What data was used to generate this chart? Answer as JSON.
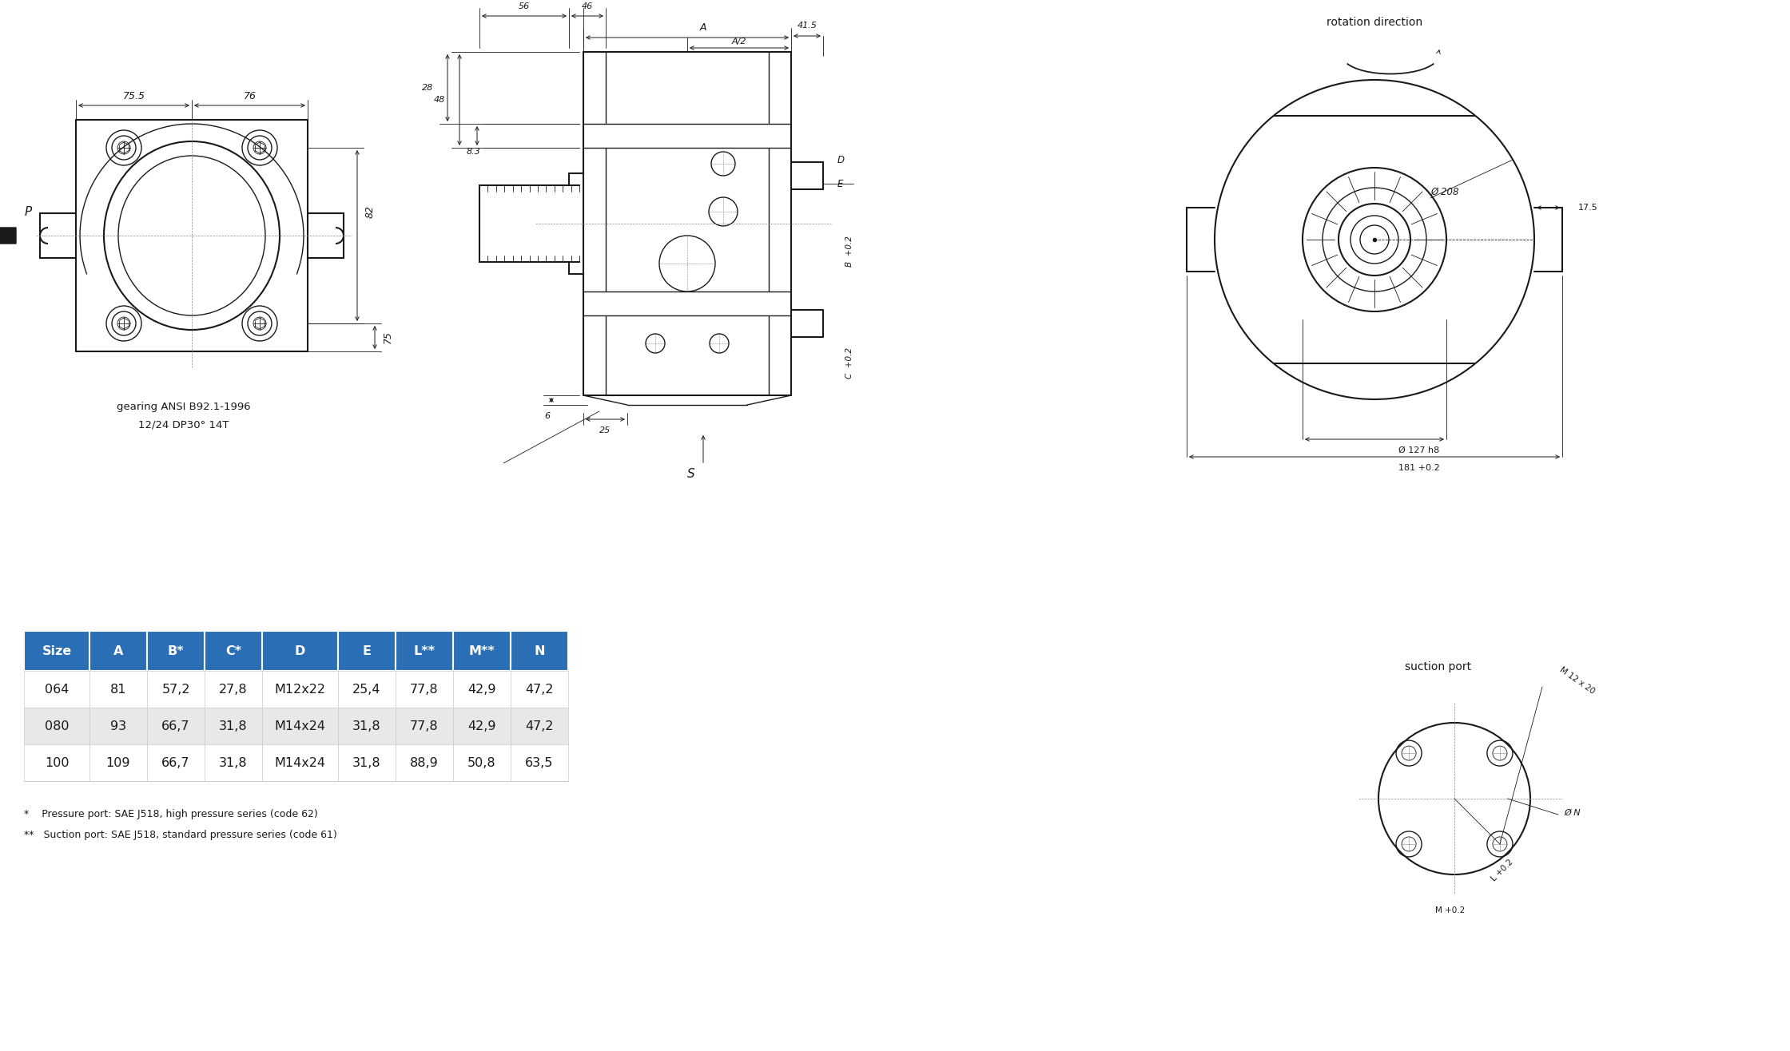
{
  "bg_color": "#ffffff",
  "table_header_bg": "#2a6eb5",
  "table_header_fg": "#ffffff",
  "table_row0_bg": "#ffffff",
  "table_row1_bg": "#e8e8e8",
  "table_columns": [
    "Size",
    "A",
    "B*",
    "C*",
    "D",
    "E",
    "L**",
    "M**",
    "N"
  ],
  "table_data": [
    [
      "064",
      "81",
      "57,2",
      "27,8",
      "M12x22",
      "25,4",
      "77,8",
      "42,9",
      "47,2"
    ],
    [
      "080",
      "93",
      "66,7",
      "31,8",
      "M14x24",
      "31,8",
      "77,8",
      "42,9",
      "47,2"
    ],
    [
      "100",
      "109",
      "66,7",
      "31,8",
      "M14x24",
      "31,8",
      "88,9",
      "50,8",
      "63,5"
    ]
  ],
  "footnote1": "*    Pressure port: SAE J518, high pressure series (code 62)",
  "footnote2": "**   Suction port: SAE J518, standard pressure series (code 61)",
  "rot_dir": "rotation direction",
  "suction_port": "suction port",
  "gearing_text1": "gearing ANSI B92.1-1996",
  "gearing_text2": "12/24 DP30° 14T",
  "dim_75_5": "75.5",
  "dim_76": "76",
  "dim_82": "82",
  "dim_75": "75",
  "dim_P": "P",
  "dim_A": "A",
  "dim_A2": "A/2",
  "dim_56": "56",
  "dim_46": "46",
  "dim_41_5": "41.5",
  "dim_48": "48",
  "dim_28": "28",
  "dim_8_3": "8.3",
  "dim_6": "6",
  "dim_25": "25",
  "dim_B": "B",
  "dim_C": "C",
  "dim_D": "D",
  "dim_E": "E",
  "dim_S": "S",
  "dim_208": "Ø 208",
  "dim_127": "Ø 127 h8",
  "dim_181": "181 +0.2",
  "dim_17_5": "17.5",
  "suction_M12x20": "M 12 x 20",
  "suction_phi_N": "Ø N",
  "suction_L": "L +0.2",
  "suction_M": "M +0.2"
}
